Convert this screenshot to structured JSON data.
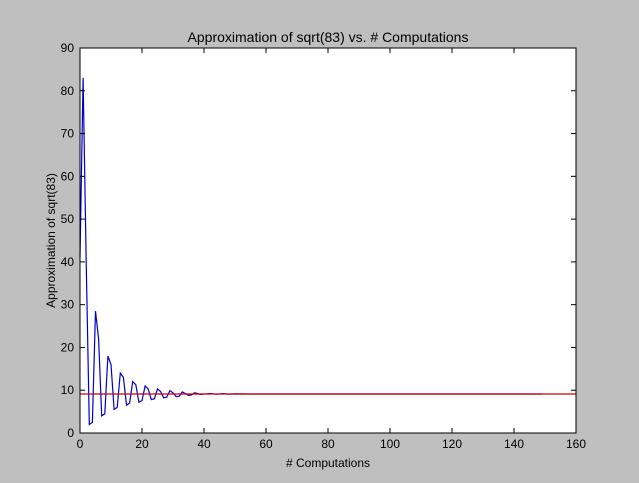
{
  "chart_data": {
    "type": "line",
    "title": "Approximation of sqrt(83) vs. # Computations",
    "xlabel": "# Computations",
    "ylabel": "Approximation of sqrt(83)",
    "xlim": [
      0,
      160
    ],
    "ylim": [
      0,
      90
    ],
    "xticks": [
      "0",
      "20",
      "40",
      "60",
      "80",
      "100",
      "120",
      "140",
      "160"
    ],
    "yticks": [
      "0",
      "10",
      "20",
      "30",
      "40",
      "50",
      "60",
      "70",
      "80",
      "90"
    ],
    "grid": false,
    "legend": "none",
    "series": [
      {
        "color": "#0000cc",
        "x": [
          0,
          1,
          2,
          3,
          4,
          5,
          6,
          7,
          8,
          9,
          10,
          11,
          12,
          13,
          14,
          15,
          16,
          17,
          18,
          19,
          20,
          21,
          22,
          23,
          24,
          25,
          26,
          27,
          28,
          29,
          30,
          31,
          32,
          33,
          34,
          35,
          36,
          37,
          38,
          39,
          40,
          42,
          44,
          46,
          48,
          50,
          55,
          60,
          70,
          80,
          90,
          100,
          110,
          120,
          130,
          140,
          149
        ],
        "y": [
          41,
          83,
          40,
          2,
          2.5,
          28.5,
          22,
          4,
          4.5,
          18,
          16,
          5.5,
          6,
          14,
          13,
          6.5,
          7,
          12,
          11.3,
          7.2,
          7.6,
          11,
          10.3,
          7.8,
          8,
          10.3,
          9.7,
          8.2,
          8.4,
          9.9,
          9.4,
          8.5,
          8.6,
          9.6,
          9.2,
          8.8,
          8.9,
          9.4,
          9.2,
          9.0,
          9.1,
          9.25,
          9.05,
          9.2,
          9.08,
          9.15,
          9.12,
          9.11,
          9.11,
          9.11,
          9.11,
          9.11,
          9.11,
          9.11,
          9.11,
          9.11,
          9.11
        ]
      },
      {
        "color": "#cc0000",
        "x": [
          0,
          160
        ],
        "y": [
          9.11,
          9.11
        ]
      }
    ]
  }
}
